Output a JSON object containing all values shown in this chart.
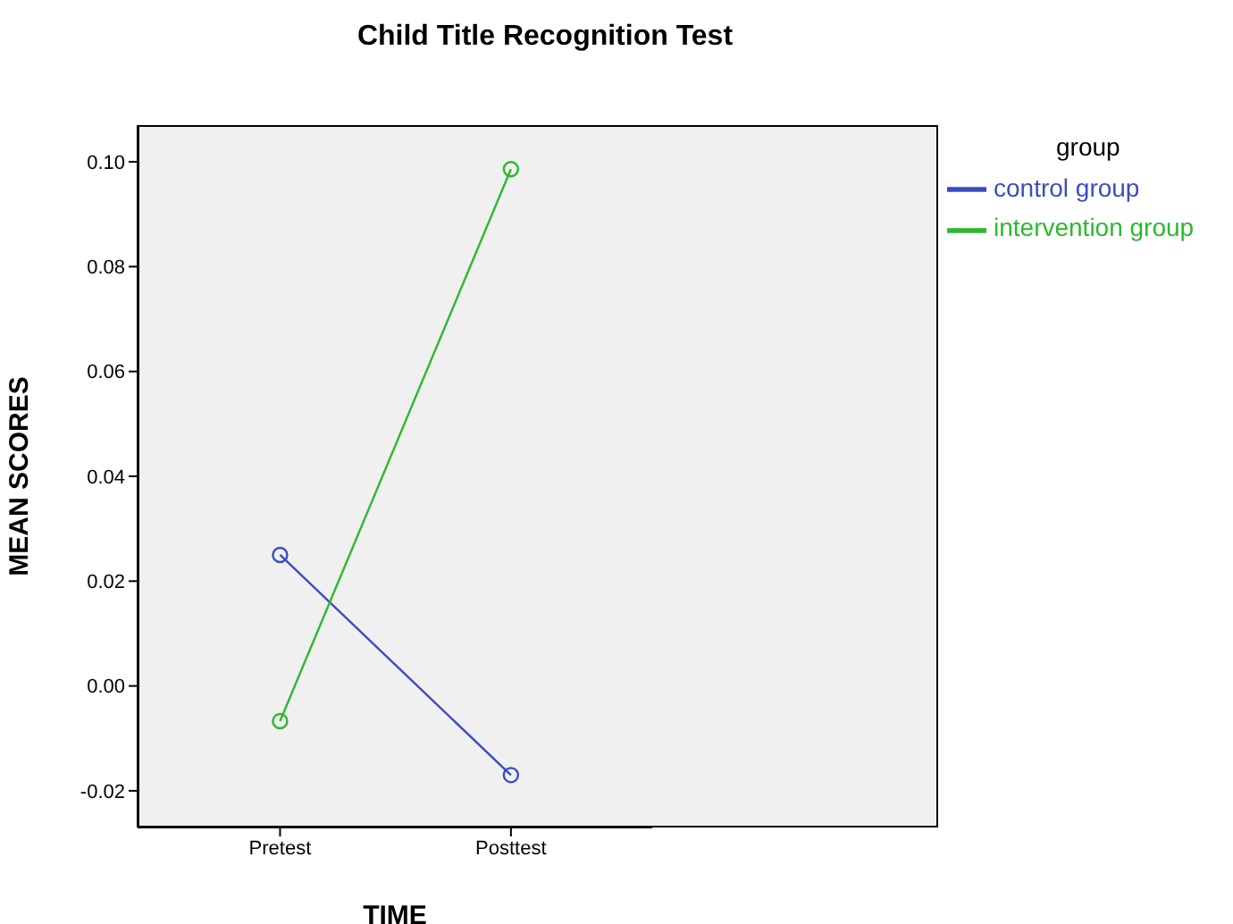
{
  "chart_data": {
    "type": "line",
    "title": "Child Title Recognition Test",
    "xlabel": "TIME",
    "ylabel": "MEAN SCORES",
    "legend_title": "group",
    "categories": [
      "Pretest",
      "Posttest"
    ],
    "series": [
      {
        "name": "control group",
        "color": "#3b4cc0",
        "values": [
          0.025,
          -0.017
        ]
      },
      {
        "name": "intervention group",
        "color": "#2db82d",
        "values": [
          -0.0067,
          0.0986
        ]
      }
    ],
    "ylim": [
      -0.027,
      0.107
    ],
    "yticks": [
      {
        "value": -0.02,
        "label": "-0.02"
      },
      {
        "value": 0,
        "label": "0.00"
      },
      {
        "value": 0.02,
        "label": "0.02"
      },
      {
        "value": 0.04,
        "label": "0.04"
      },
      {
        "value": 0.06,
        "label": "0.06"
      },
      {
        "value": 0.08,
        "label": "0.08"
      },
      {
        "value": 0.1,
        "label": "0.10"
      }
    ],
    "marker": "circle",
    "line_style": "solid",
    "legend": "right",
    "grid": false
  }
}
